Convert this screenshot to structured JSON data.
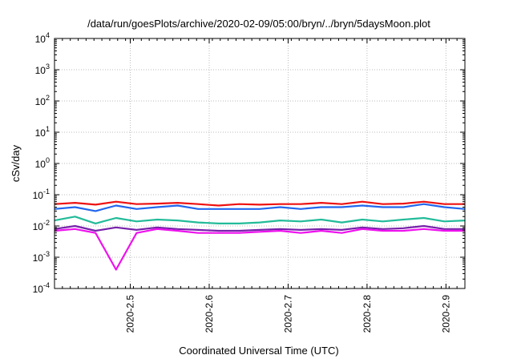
{
  "chart_data": {
    "type": "line",
    "title": "/data/run/goesPlots/archive/2020-02-09/05:00/bryn/../bryn/5daysMoon.plot",
    "xlabel": "Coordinated Universal Time (UTC)",
    "ylabel": "cSv/day",
    "yscale": "log",
    "ylim": [
      0.0001,
      10000
    ],
    "xlim": [
      2020.404,
      2020.924
    ],
    "grid": true,
    "legend": "none",
    "y_ticks": [
      {
        "base": "10",
        "exp": "-4",
        "value": 0.0001
      },
      {
        "base": "10",
        "exp": "-3",
        "value": 0.001
      },
      {
        "base": "10",
        "exp": "-2",
        "value": 0.01
      },
      {
        "base": "10",
        "exp": "-1",
        "value": 0.1
      },
      {
        "base": "10",
        "exp": "0",
        "value": 1
      },
      {
        "base": "10",
        "exp": "1",
        "value": 10
      },
      {
        "base": "10",
        "exp": "2",
        "value": 100
      },
      {
        "base": "10",
        "exp": "3",
        "value": 1000
      },
      {
        "base": "10",
        "exp": "4",
        "value": 10000
      }
    ],
    "x_ticks": [
      {
        "label": "2020-2.5",
        "value": 2020.5
      },
      {
        "label": "2020-2.6",
        "value": 2020.6
      },
      {
        "label": "2020-2.7",
        "value": 2020.7
      },
      {
        "label": "2020-2.8",
        "value": 2020.8
      },
      {
        "label": "2020-2.9",
        "value": 2020.9
      }
    ],
    "x": [
      2020.404,
      2020.43,
      2020.456,
      2020.482,
      2020.508,
      2020.534,
      2020.56,
      2020.586,
      2020.612,
      2020.638,
      2020.664,
      2020.69,
      2020.716,
      2020.742,
      2020.768,
      2020.794,
      2020.82,
      2020.846,
      2020.872,
      2020.898,
      2020.924
    ],
    "series": [
      {
        "color": "#ee1111",
        "values": [
          0.05,
          0.055,
          0.048,
          0.06,
          0.05,
          0.052,
          0.055,
          0.05,
          0.045,
          0.05,
          0.048,
          0.05,
          0.05,
          0.055,
          0.05,
          0.06,
          0.05,
          0.052,
          0.06,
          0.05,
          0.05
        ]
      },
      {
        "color": "#2266ee",
        "values": [
          0.035,
          0.04,
          0.03,
          0.045,
          0.035,
          0.04,
          0.045,
          0.035,
          0.035,
          0.035,
          0.035,
          0.04,
          0.035,
          0.04,
          0.04,
          0.045,
          0.04,
          0.04,
          0.05,
          0.04,
          0.035
        ]
      },
      {
        "color": "#22bb99",
        "values": [
          0.015,
          0.02,
          0.012,
          0.018,
          0.014,
          0.016,
          0.015,
          0.013,
          0.012,
          0.012,
          0.013,
          0.015,
          0.014,
          0.016,
          0.013,
          0.016,
          0.014,
          0.016,
          0.018,
          0.014,
          0.015
        ]
      },
      {
        "color": "#7722aa",
        "values": [
          0.008,
          0.01,
          0.007,
          0.009,
          0.0075,
          0.009,
          0.008,
          0.0075,
          0.007,
          0.007,
          0.0075,
          0.008,
          0.0075,
          0.008,
          0.0075,
          0.009,
          0.008,
          0.0085,
          0.01,
          0.008,
          0.008
        ]
      },
      {
        "color": "#ee11ee",
        "values": [
          0.007,
          0.008,
          0.006,
          0.0004,
          0.006,
          0.008,
          0.007,
          0.006,
          0.006,
          0.006,
          0.0065,
          0.007,
          0.006,
          0.007,
          0.006,
          0.008,
          0.007,
          0.007,
          0.008,
          0.007,
          0.007
        ]
      }
    ]
  }
}
